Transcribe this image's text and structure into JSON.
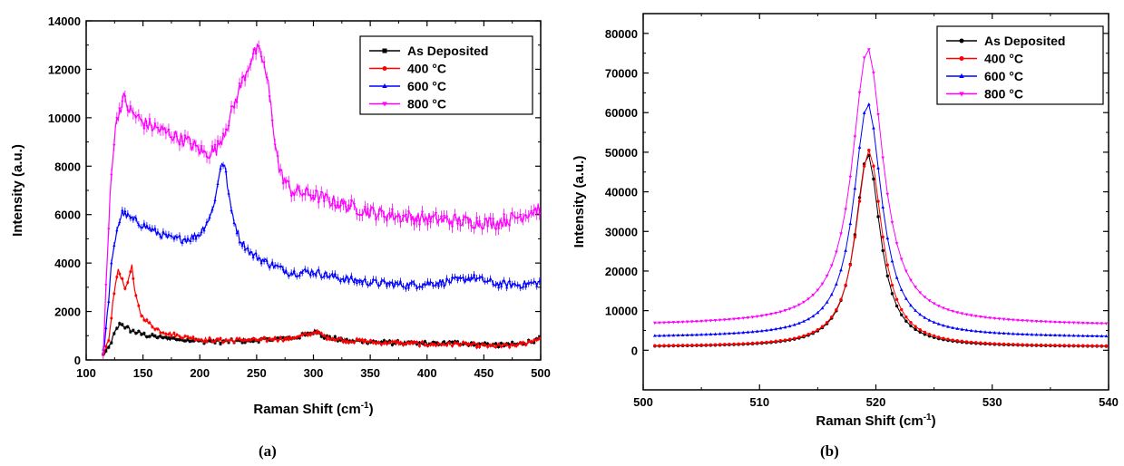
{
  "colors": {
    "as_deposited": "#000000",
    "c400": "#ff0000",
    "c600": "#0000ff",
    "c800": "#ff00ff"
  },
  "captions": {
    "a": "(a)",
    "b": "(b)"
  },
  "chart_data": [
    {
      "type": "line",
      "xlabel": "Raman Shift (cm",
      "xlabel_sup": "-1",
      "xlabel_end": ")",
      "ylabel": "Intensity (a.u.)",
      "xlim": [
        100,
        500
      ],
      "ylim": [
        0,
        14000
      ],
      "xticks": [
        100,
        150,
        200,
        250,
        300,
        350,
        400,
        450,
        500
      ],
      "yticks": [
        0,
        2000,
        4000,
        6000,
        8000,
        10000,
        12000,
        14000
      ],
      "legend_position": "top-right",
      "series": [
        {
          "name": "As Deposited",
          "color": "#000000",
          "marker": "square",
          "points": [
            [
              115,
              200
            ],
            [
              120,
              500
            ],
            [
              125,
              1100
            ],
            [
              130,
              1500
            ],
            [
              135,
              1350
            ],
            [
              140,
              1200
            ],
            [
              150,
              1050
            ],
            [
              160,
              950
            ],
            [
              175,
              880
            ],
            [
              200,
              780
            ],
            [
              220,
              750
            ],
            [
              240,
              800
            ],
            [
              260,
              850
            ],
            [
              280,
              900
            ],
            [
              295,
              1050
            ],
            [
              302,
              1200
            ],
            [
              310,
              950
            ],
            [
              330,
              800
            ],
            [
              360,
              720
            ],
            [
              400,
              680
            ],
            [
              430,
              700
            ],
            [
              460,
              620
            ],
            [
              480,
              650
            ],
            [
              500,
              850
            ]
          ]
        },
        {
          "name": "400 °C",
          "color": "#ff0000",
          "marker": "circle",
          "points": [
            [
              115,
              200
            ],
            [
              120,
              800
            ],
            [
              124,
              2600
            ],
            [
              128,
              3700
            ],
            [
              132,
              3300
            ],
            [
              135,
              2900
            ],
            [
              138,
              3500
            ],
            [
              140,
              3950
            ],
            [
              143,
              2700
            ],
            [
              148,
              1900
            ],
            [
              155,
              1500
            ],
            [
              165,
              1200
            ],
            [
              180,
              1000
            ],
            [
              200,
              850
            ],
            [
              220,
              800
            ],
            [
              240,
              820
            ],
            [
              260,
              840
            ],
            [
              280,
              900
            ],
            [
              295,
              1050
            ],
            [
              302,
              1200
            ],
            [
              310,
              950
            ],
            [
              330,
              800
            ],
            [
              360,
              720
            ],
            [
              400,
              650
            ],
            [
              430,
              650
            ],
            [
              460,
              560
            ],
            [
              480,
              600
            ],
            [
              500,
              900
            ]
          ]
        },
        {
          "name": "600 °C",
          "color": "#0000ff",
          "marker": "triangle-up",
          "points": [
            [
              115,
              300
            ],
            [
              118,
              1500
            ],
            [
              122,
              3800
            ],
            [
              127,
              5400
            ],
            [
              132,
              6100
            ],
            [
              137,
              5900
            ],
            [
              145,
              5700
            ],
            [
              160,
              5300
            ],
            [
              175,
              5000
            ],
            [
              190,
              5000
            ],
            [
              200,
              5200
            ],
            [
              210,
              6000
            ],
            [
              215,
              7000
            ],
            [
              219,
              8200
            ],
            [
              222,
              8000
            ],
            [
              227,
              6300
            ],
            [
              235,
              5000
            ],
            [
              245,
              4400
            ],
            [
              260,
              4000
            ],
            [
              280,
              3600
            ],
            [
              300,
              3650
            ],
            [
              320,
              3400
            ],
            [
              350,
              3200
            ],
            [
              380,
              3100
            ],
            [
              400,
              3150
            ],
            [
              430,
              3300
            ],
            [
              440,
              3400
            ],
            [
              460,
              3150
            ],
            [
              480,
              3100
            ],
            [
              500,
              3200
            ]
          ]
        },
        {
          "name": "800 °C",
          "color": "#ff00ff",
          "marker": "triangle-down",
          "points": [
            [
              115,
              300
            ],
            [
              118,
              3500
            ],
            [
              122,
              7800
            ],
            [
              127,
              10000
            ],
            [
              133,
              10800
            ],
            [
              138,
              10300
            ],
            [
              150,
              9800
            ],
            [
              170,
              9400
            ],
            [
              190,
              9000
            ],
            [
              205,
              8500
            ],
            [
              215,
              8700
            ],
            [
              225,
              9800
            ],
            [
              235,
              11200
            ],
            [
              245,
              12400
            ],
            [
              250,
              12800
            ],
            [
              255,
              12500
            ],
            [
              260,
              11400
            ],
            [
              265,
              9500
            ],
            [
              270,
              7800
            ],
            [
              280,
              7000
            ],
            [
              300,
              6800
            ],
            [
              320,
              6500
            ],
            [
              350,
              6100
            ],
            [
              380,
              5900
            ],
            [
              410,
              5800
            ],
            [
              440,
              5700
            ],
            [
              460,
              5650
            ],
            [
              480,
              5900
            ],
            [
              500,
              6300
            ]
          ]
        }
      ]
    },
    {
      "type": "line",
      "xlabel": "Raman Shift (cm",
      "xlabel_sup": "-1",
      "xlabel_end": ")",
      "ylabel": "Intensity (a.u.)",
      "xlim": [
        500,
        540
      ],
      "ylim": [
        -10000,
        85000
      ],
      "xticks": [
        500,
        510,
        520,
        530,
        540
      ],
      "yticks": [
        0,
        10000,
        20000,
        30000,
        40000,
        50000,
        60000,
        70000,
        80000
      ],
      "legend_position": "top-right",
      "series": [
        {
          "name": "As Deposited",
          "color": "#000000",
          "marker": "circle",
          "baseline": 800,
          "baseline_slope": 0,
          "peak": 49500,
          "center": 519.3,
          "width": 2.6
        },
        {
          "name": "400 °C",
          "color": "#ff0000",
          "marker": "circle",
          "baseline": 900,
          "baseline_slope": 0,
          "peak": 50500,
          "center": 519.4,
          "width": 2.7
        },
        {
          "name": "600 °C",
          "color": "#0000ff",
          "marker": "triangle-up",
          "baseline": 3200,
          "baseline_slope": 0,
          "peak": 62000,
          "center": 519.3,
          "width": 2.9
        },
        {
          "name": "800 °C",
          "color": "#ff00ff",
          "marker": "triangle-down",
          "baseline": 6200,
          "baseline_slope": 0,
          "peak": 75500,
          "center": 519.3,
          "width": 3.2
        }
      ]
    }
  ]
}
